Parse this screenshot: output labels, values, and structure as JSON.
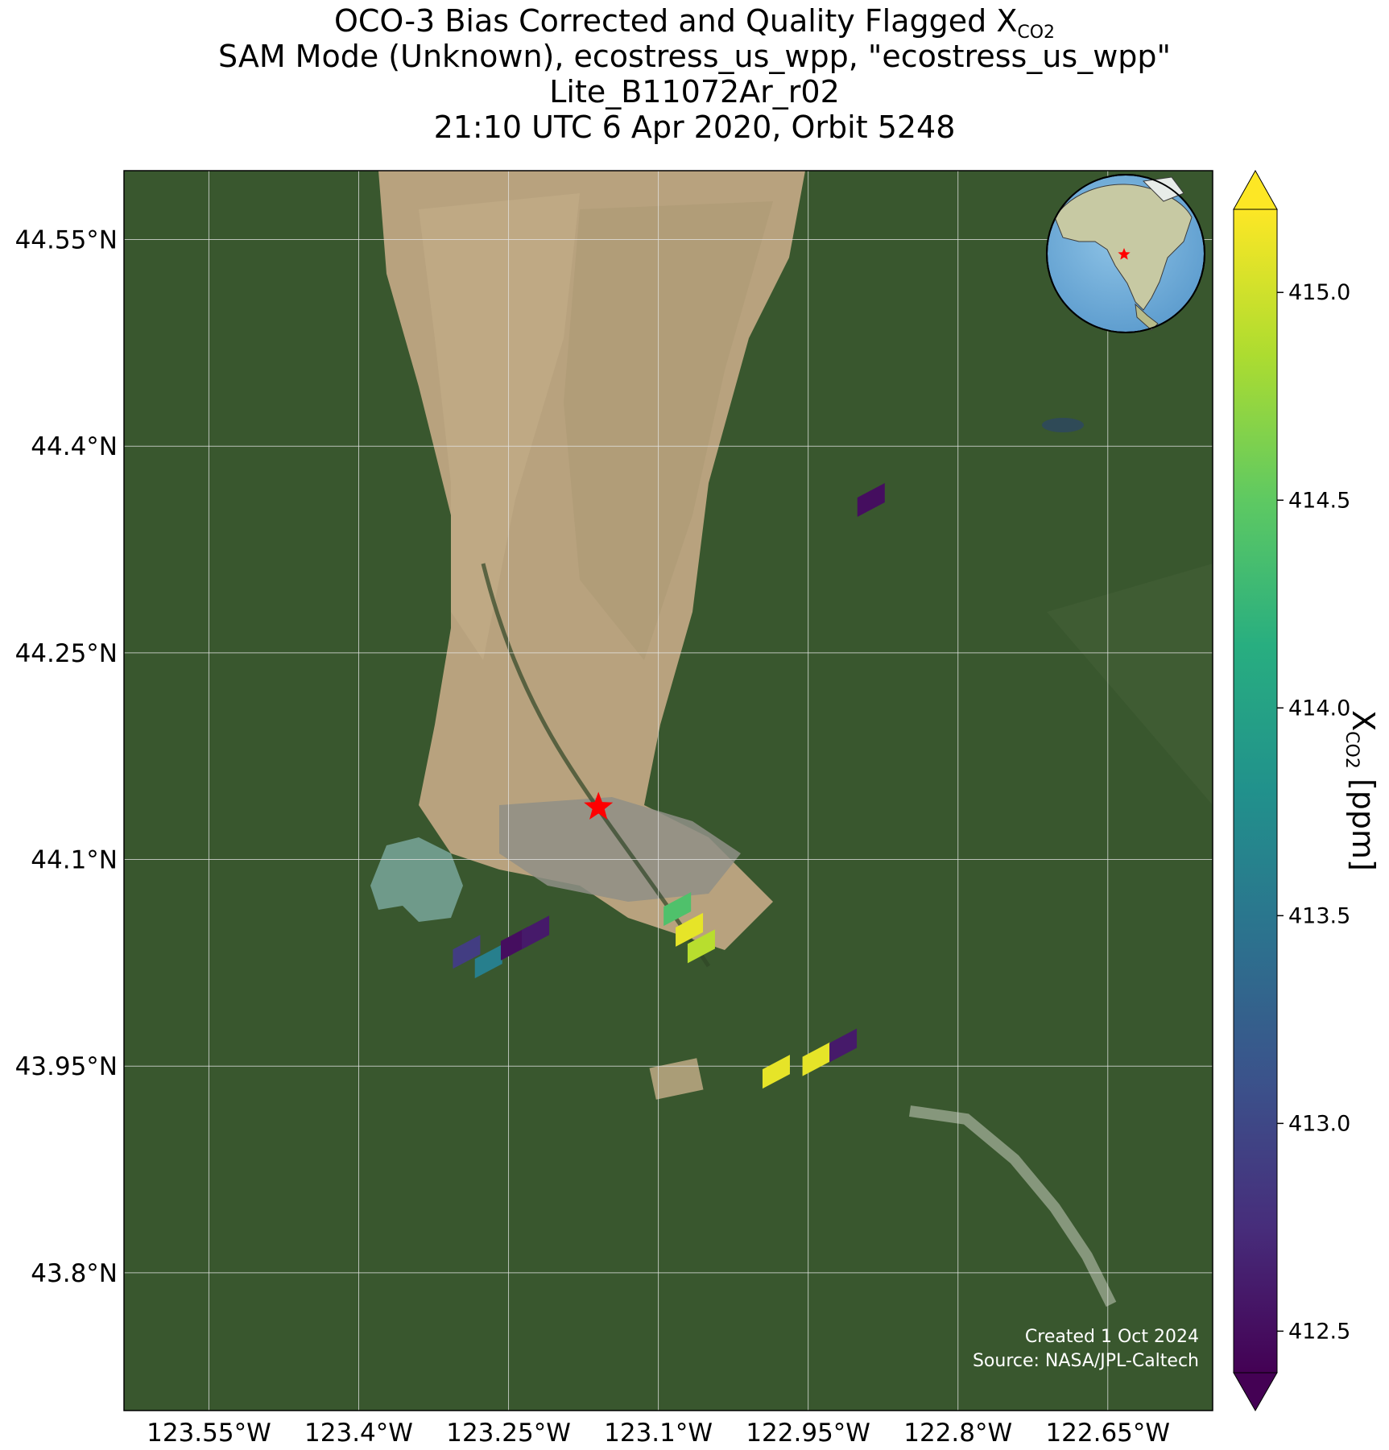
{
  "title": {
    "line1_prefix": "OCO-3 Bias Corrected and Quality Flagged X",
    "line1_sub": "CO2",
    "line2": "SAM Mode (Unknown), ecostress_us_wpp, \"ecostress_us_wpp\"",
    "line3": "Lite_B11072Ar_r02",
    "line4": "21:10 UTC 6 Apr 2020, Orbit 5248"
  },
  "map": {
    "basemap": "satellite imagery",
    "extent": {
      "lon": [
        -123.635,
        -122.545
      ],
      "lat": [
        43.7,
        44.6
      ]
    },
    "gridlines": true,
    "lat_ticks": [
      {
        "value": 44.55,
        "label": "44.55°N"
      },
      {
        "value": 44.4,
        "label": "44.4°N"
      },
      {
        "value": 44.25,
        "label": "44.25°N"
      },
      {
        "value": 44.1,
        "label": "44.1°N"
      },
      {
        "value": 43.95,
        "label": "43.95°N"
      },
      {
        "value": 43.8,
        "label": "43.8°N"
      }
    ],
    "lon_ticks": [
      {
        "value": -123.55,
        "label": "123.55°W"
      },
      {
        "value": -123.4,
        "label": "123.4°W"
      },
      {
        "value": -123.25,
        "label": "123.25°W"
      },
      {
        "value": -123.1,
        "label": "123.1°W"
      },
      {
        "value": -122.95,
        "label": "122.95°W"
      },
      {
        "value": -122.8,
        "label": "122.8°W"
      },
      {
        "value": -122.65,
        "label": "122.65°W"
      }
    ],
    "target_marker": {
      "symbol": "red-star",
      "color": "#ff0000",
      "lon": -123.16,
      "lat": 44.138
    },
    "inset_globe": {
      "marker": "red-star",
      "region": "North America"
    },
    "footer": {
      "created": "Created 1 Oct 2024",
      "source": "Source: NASA/JPL-Caltech"
    }
  },
  "chart_data": {
    "type": "heatmap",
    "variable": "XCO2",
    "units": "ppm",
    "colormap": "viridis",
    "color_range": [
      412.4,
      415.2
    ],
    "soundings": [
      {
        "lon": -123.292,
        "lat": 44.033,
        "xco2": 412.9
      },
      {
        "lon": -123.27,
        "lat": 44.026,
        "xco2": 413.6
      },
      {
        "lon": -123.244,
        "lat": 44.039,
        "xco2": 412.5
      },
      {
        "lon": -123.223,
        "lat": 44.047,
        "xco2": 412.6
      },
      {
        "lon": -123.081,
        "lat": 44.064,
        "xco2": 414.4
      },
      {
        "lon": -123.069,
        "lat": 44.049,
        "xco2": 415.1
      },
      {
        "lon": -123.057,
        "lat": 44.037,
        "xco2": 414.9
      },
      {
        "lon": -122.982,
        "lat": 43.946,
        "xco2": 415.1
      },
      {
        "lon": -122.942,
        "lat": 43.955,
        "xco2": 415.1
      },
      {
        "lon": -122.915,
        "lat": 43.965,
        "xco2": 412.6
      },
      {
        "lon": -122.887,
        "lat": 44.361,
        "xco2": 412.5
      }
    ]
  },
  "colorbar": {
    "label_prefix": "X",
    "label_sub": "CO2",
    "label_suffix": " [ppm]",
    "ticks": [
      {
        "value": 412.5,
        "label": "412.5"
      },
      {
        "value": 413.0,
        "label": "413.0"
      },
      {
        "value": 413.5,
        "label": "413.5"
      },
      {
        "value": 414.0,
        "label": "414.0"
      },
      {
        "value": 414.5,
        "label": "414.5"
      },
      {
        "value": 415.0,
        "label": "415.0"
      }
    ],
    "extend": "both"
  }
}
